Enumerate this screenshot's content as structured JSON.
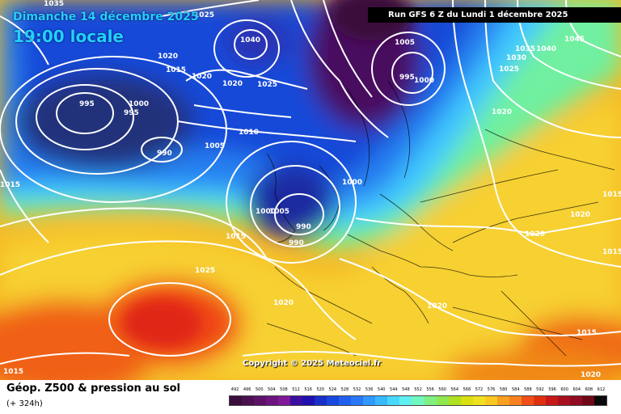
{
  "header": {
    "date": "Dimanche 14 décembre 2025",
    "time": "19:00 locale",
    "run": "Run GFS 6 Z du Lundi 1 décembre 2025"
  },
  "map": {
    "copyright": "Copyright © 2025 Meteociel.fr",
    "isobar_labels": [
      "1035",
      "1025",
      "990",
      "995",
      "1040",
      "1005",
      "995",
      "1000",
      "1045",
      "1020",
      "1015",
      "1020",
      "1035",
      "1040",
      "990",
      "995",
      "1000",
      "1030",
      "1025",
      "1020",
      "1020",
      "1025",
      "1010",
      "1005",
      "990",
      "1000",
      "1000",
      "1005",
      "990",
      "990",
      "1015",
      "1015",
      "1025",
      "1020",
      "1020",
      "1020",
      "1020",
      "1015",
      "1015",
      "1015",
      "1015",
      "1020"
    ]
  },
  "footer": {
    "title": "Géop. Z500 & pression au sol",
    "forecast_hour": "(+ 324h)"
  },
  "scale": {
    "labels": [
      "492",
      "496",
      "500",
      "504",
      "508",
      "512",
      "516",
      "520",
      "524",
      "528",
      "532",
      "536",
      "540",
      "544",
      "548",
      "552",
      "556",
      "560",
      "564",
      "568",
      "572",
      "576",
      "580",
      "584",
      "588",
      "592",
      "596",
      "600",
      "604",
      "608",
      "612"
    ],
    "colors": [
      "#3a0d3a",
      "#4a1050",
      "#5c1268",
      "#6e1480",
      "#801898",
      "#3c0ea0",
      "#2010b0",
      "#1830c8",
      "#1848e0",
      "#2060f0",
      "#2878f8",
      "#3098ff",
      "#38b8ff",
      "#48d8ff",
      "#60f0f0",
      "#70f8c0",
      "#80f080",
      "#90e850",
      "#b0e020",
      "#d8e010",
      "#f0e020",
      "#f8c820",
      "#f8a020",
      "#f88020",
      "#f05018",
      "#e03010",
      "#c81818",
      "#a81020",
      "#900c20",
      "#700818",
      "#0a0a0a"
    ]
  }
}
